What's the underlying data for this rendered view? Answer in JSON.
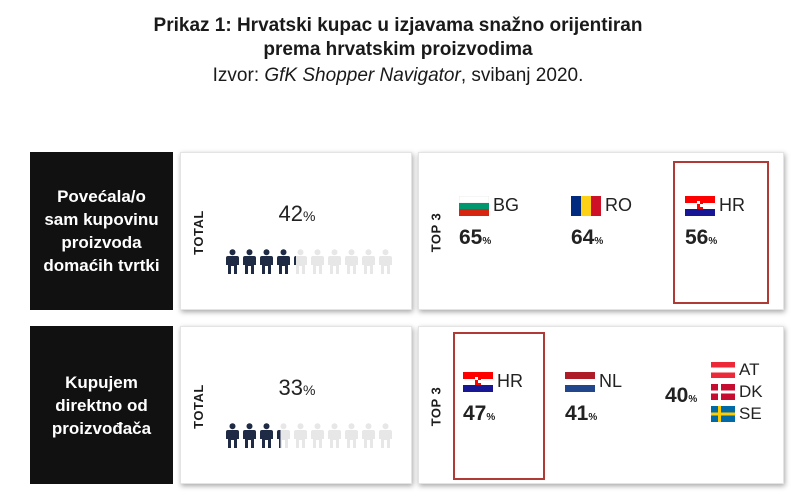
{
  "header": {
    "title_line1": "Prikaz 1: Hrvatski kupac u izjavama snažno orijentiran",
    "title_line2": "prema hrvatskim proizvodima",
    "source_prefix": "Izvor: ",
    "source_name": "GfK Shopper Navigator",
    "source_suffix": ", svibanj 2020."
  },
  "chart_data": {
    "type": "table",
    "rows": [
      {
        "statement": "Povećala/o sam kupovinu proizvoda domaćih tvrtki",
        "total_label": "TOTAL",
        "total_value": 42,
        "total_display": "42",
        "top3_label": "TOP 3",
        "top3": [
          {
            "country": "BG",
            "value": 65,
            "display": "65"
          },
          {
            "country": "RO",
            "value": 64,
            "display": "64"
          },
          {
            "country": "HR",
            "value": 56,
            "display": "56",
            "highlighted": true
          }
        ]
      },
      {
        "statement": "Kupujem direktno od proizvođača",
        "total_label": "TOTAL",
        "total_value": 33,
        "total_display": "33",
        "top3_label": "TOP 3",
        "top3": [
          {
            "country": "HR",
            "value": 47,
            "display": "47",
            "highlighted": true
          },
          {
            "country": "NL",
            "value": 41,
            "display": "41"
          },
          {
            "countries": [
              "AT",
              "DK",
              "SE"
            ],
            "value": 40,
            "display": "40"
          }
        ]
      }
    ],
    "percent_symbol": "%",
    "highlight_color": "#b03a36",
    "person_filled_color": "#1f2a44",
    "person_empty_color": "#e7e7e7"
  }
}
